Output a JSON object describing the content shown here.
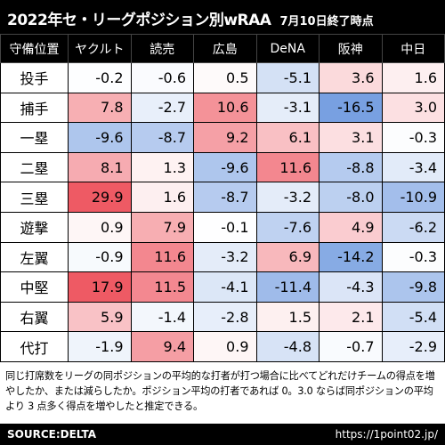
{
  "title": "2022年セ・リーグポジション別wRAA",
  "subtitle": "7月10日終了時点",
  "chart_data": {
    "type": "table",
    "corner_label": "守備位置",
    "columns": [
      "ヤクルト",
      "読売",
      "広島",
      "DeNA",
      "阪神",
      "中日"
    ],
    "rows": [
      "投手",
      "捕手",
      "一塁",
      "二塁",
      "三塁",
      "遊撃",
      "左翼",
      "中堅",
      "右翼",
      "代打"
    ],
    "values": [
      [
        -0.2,
        -0.6,
        0.5,
        -5.1,
        3.6,
        1.6
      ],
      [
        7.8,
        -2.7,
        10.6,
        -3.1,
        -16.5,
        3.0
      ],
      [
        -9.6,
        -8.7,
        9.2,
        6.1,
        3.1,
        -0.3
      ],
      [
        8.1,
        1.3,
        -9.6,
        11.6,
        -8.8,
        -3.4
      ],
      [
        29.9,
        1.6,
        -8.7,
        -3.2,
        -8.0,
        -10.9
      ],
      [
        0.9,
        7.9,
        -0.1,
        -7.6,
        4.9,
        -6.2
      ],
      [
        -0.9,
        11.6,
        -3.2,
        6.9,
        -14.2,
        -0.3
      ],
      [
        17.9,
        11.5,
        -4.1,
        -11.4,
        -4.3,
        -9.8
      ],
      [
        5.9,
        -1.4,
        -2.8,
        1.5,
        2.1,
        -5.4
      ],
      [
        -1.9,
        9.4,
        0.9,
        -4.8,
        -0.7,
        -2.9
      ]
    ]
  },
  "note": "同じ打席数をリーグの同ポジションの平均的な打者が打つ場合に比べてどれだけチームの得点を増やしたか、または減らしたか。ポジション平均の打者であれば 0。3.0 ならば同ポジションの平均より 3 点多く得点を増やしたと推定できる。",
  "footer": {
    "source": "SOURCE:DELTA",
    "url": "https://1point02.jp/"
  }
}
